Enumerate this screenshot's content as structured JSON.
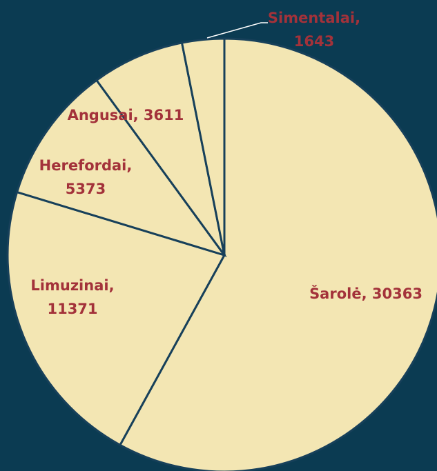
{
  "chart_data": {
    "type": "pie",
    "values": [
      30363,
      11371,
      5373,
      3611,
      1643
    ],
    "value_labels": [
      [
        "Šarolė, 30363"
      ],
      [
        "Limuzinai,",
        "11371"
      ],
      [
        "Herefordai,",
        "5373"
      ],
      [
        "Angusai, 3611"
      ],
      [
        "Simentalai,",
        "1643"
      ]
    ],
    "color": "#f3e6b3",
    "background": "#0b3b52",
    "edge_color": "#17405a",
    "label_color": "#a3323a"
  }
}
